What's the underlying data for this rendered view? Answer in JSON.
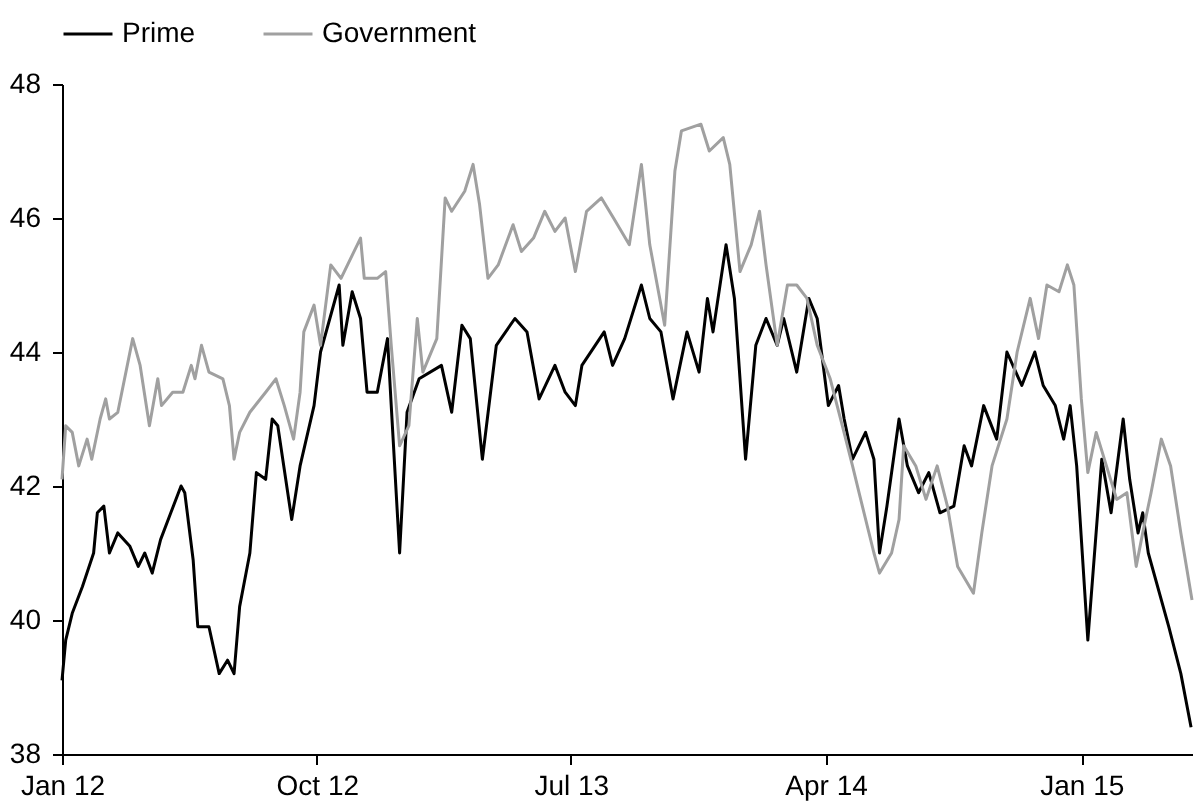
{
  "chart_data": {
    "type": "line",
    "legend": "top",
    "grid": false,
    "ylim": [
      38,
      48
    ],
    "yticks": [
      38,
      40,
      42,
      44,
      46,
      48
    ],
    "xlim": [
      "2012-01-01",
      "2015-04-30"
    ],
    "xticks": [
      {
        "value": "2012-01-01",
        "label": "Jan 12"
      },
      {
        "value": "2012-10-01",
        "label": "Oct 12"
      },
      {
        "value": "2013-07-01",
        "label": "Jul 13"
      },
      {
        "value": "2014-04-01",
        "label": "Apr 14"
      },
      {
        "value": "2015-01-01",
        "label": "Jan 15"
      }
    ],
    "series": [
      {
        "name": "Prime",
        "color": "#000000",
        "x": [
          "2012-01-01",
          "2012-01-05",
          "2012-01-12",
          "2012-01-23",
          "2012-02-04",
          "2012-02-08",
          "2012-02-15",
          "2012-02-21",
          "2012-03-01",
          "2012-03-14",
          "2012-03-23",
          "2012-03-30",
          "2012-04-07",
          "2012-04-16",
          "2012-04-27",
          "2012-05-08",
          "2012-05-12",
          "2012-05-21",
          "2012-05-26",
          "2012-06-07",
          "2012-06-18",
          "2012-06-27",
          "2012-07-04",
          "2012-07-10",
          "2012-07-21",
          "2012-07-28",
          "2012-08-07",
          "2012-08-14",
          "2012-08-20",
          "2012-09-04",
          "2012-09-13",
          "2012-09-28",
          "2012-10-05",
          "2012-10-25",
          "2012-10-29",
          "2012-11-08",
          "2012-11-17",
          "2012-11-24",
          "2012-12-05",
          "2012-12-16",
          "2012-12-20",
          "2012-12-29",
          "2013-01-06",
          "2013-01-19",
          "2013-02-12",
          "2013-02-23",
          "2013-03-06",
          "2013-03-15",
          "2013-03-28",
          "2013-04-12",
          "2013-05-02",
          "2013-05-15",
          "2013-05-28",
          "2013-06-14",
          "2013-06-25",
          "2013-07-06",
          "2013-07-13",
          "2013-08-06",
          "2013-08-15",
          "2013-08-28",
          "2013-09-15",
          "2013-09-24",
          "2013-10-06",
          "2013-10-19",
          "2013-11-03",
          "2013-11-16",
          "2013-11-25",
          "2013-12-01",
          "2013-12-15",
          "2013-12-24",
          "2014-01-05",
          "2014-01-16",
          "2014-01-27",
          "2014-02-08",
          "2014-02-15",
          "2014-03-01",
          "2014-03-14",
          "2014-03-23",
          "2014-04-04",
          "2014-04-15",
          "2014-04-21",
          "2014-04-30",
          "2014-05-14",
          "2014-05-23",
          "2014-05-29",
          "2014-06-06",
          "2014-06-19",
          "2014-06-28",
          "2014-07-10",
          "2014-07-21",
          "2014-08-02",
          "2014-08-17",
          "2014-08-28",
          "2014-09-05",
          "2014-09-18",
          "2014-10-02",
          "2014-10-13",
          "2014-10-29",
          "2014-11-12",
          "2014-11-21",
          "2014-12-04",
          "2014-12-13",
          "2014-12-20",
          "2014-12-27",
          "2015-01-08",
          "2015-01-23",
          "2015-02-02",
          "2015-02-15",
          "2015-02-22",
          "2015-03-03",
          "2015-03-08",
          "2015-03-14",
          "2015-04-05",
          "2015-04-18",
          "2015-04-29"
        ],
        "values": [
          39.1,
          39.7,
          40.1,
          40.5,
          41.0,
          41.6,
          41.7,
          41.0,
          41.3,
          41.1,
          40.8,
          41.0,
          40.7,
          41.2,
          41.6,
          42.0,
          41.9,
          40.9,
          39.9,
          39.9,
          39.2,
          39.4,
          39.2,
          40.2,
          41.0,
          42.2,
          42.1,
          43.0,
          42.9,
          41.5,
          42.3,
          43.2,
          44.0,
          45.0,
          44.1,
          44.9,
          44.5,
          43.4,
          43.4,
          44.2,
          43.2,
          41.0,
          43.1,
          43.6,
          43.8,
          43.1,
          44.4,
          44.2,
          42.4,
          44.1,
          44.5,
          44.3,
          43.3,
          43.8,
          43.4,
          43.2,
          43.8,
          44.3,
          43.8,
          44.2,
          45.0,
          44.5,
          44.3,
          43.3,
          44.3,
          43.7,
          44.8,
          44.3,
          45.6,
          44.8,
          42.4,
          44.1,
          44.5,
          44.1,
          44.5,
          43.7,
          44.8,
          44.5,
          43.2,
          43.5,
          43.0,
          42.4,
          42.8,
          42.4,
          41.0,
          41.7,
          43.0,
          42.3,
          41.9,
          42.2,
          41.6,
          41.7,
          42.6,
          42.3,
          43.2,
          42.7,
          44.0,
          43.5,
          44.0,
          43.5,
          43.2,
          42.7,
          43.2,
          42.3,
          39.7,
          42.4,
          41.6,
          43.0,
          42.1,
          41.3,
          41.6,
          41.0,
          39.9,
          39.2,
          38.4
        ]
      },
      {
        "name": "Government",
        "color": "#a0a0a0",
        "x": [
          "2012-01-01",
          "2012-01-05",
          "2012-01-12",
          "2012-01-19",
          "2012-01-28",
          "2012-02-02",
          "2012-02-11",
          "2012-02-17",
          "2012-02-21",
          "2012-03-01",
          "2012-03-17",
          "2012-03-25",
          "2012-04-04",
          "2012-04-13",
          "2012-04-17",
          "2012-04-29",
          "2012-05-10",
          "2012-05-19",
          "2012-05-23",
          "2012-05-30",
          "2012-06-07",
          "2012-06-22",
          "2012-06-29",
          "2012-07-04",
          "2012-07-10",
          "2012-07-21",
          "2012-08-07",
          "2012-08-18",
          "2012-08-27",
          "2012-09-06",
          "2012-09-13",
          "2012-09-17",
          "2012-09-28",
          "2012-10-05",
          "2012-10-16",
          "2012-10-27",
          "2012-11-17",
          "2012-11-21",
          "2012-12-05",
          "2012-12-14",
          "2012-12-20",
          "2012-12-29",
          "2013-01-08",
          "2013-01-17",
          "2013-01-23",
          "2013-02-07",
          "2013-02-16",
          "2013-02-23",
          "2013-03-09",
          "2013-03-18",
          "2013-03-25",
          "2013-04-03",
          "2013-04-14",
          "2013-04-30",
          "2013-05-09",
          "2013-05-22",
          "2013-06-03",
          "2013-06-14",
          "2013-06-25",
          "2013-07-06",
          "2013-07-18",
          "2013-08-03",
          "2013-08-16",
          "2013-09-02",
          "2013-09-15",
          "2013-09-24",
          "2013-10-10",
          "2013-10-21",
          "2013-10-28",
          "2013-11-18",
          "2013-11-27",
          "2013-12-12",
          "2013-12-19",
          "2013-12-30",
          "2014-01-11",
          "2014-01-20",
          "2014-01-27",
          "2014-02-08",
          "2014-02-19",
          "2014-03-01",
          "2014-03-12",
          "2014-03-23",
          "2014-04-06",
          "2014-04-19",
          "2014-04-30",
          "2014-05-07",
          "2014-05-23",
          "2014-05-29",
          "2014-06-11",
          "2014-06-19",
          "2014-06-24",
          "2014-07-07",
          "2014-07-18",
          "2014-07-30",
          "2014-08-10",
          "2014-08-21",
          "2014-09-07",
          "2014-09-16",
          "2014-09-27",
          "2014-10-13",
          "2014-10-24",
          "2014-11-07",
          "2014-11-16",
          "2014-11-25",
          "2014-12-08",
          "2014-12-17",
          "2014-12-24",
          "2015-01-01",
          "2015-01-08",
          "2015-01-17",
          "2015-01-28",
          "2015-02-08",
          "2015-02-19",
          "2015-03-01",
          "2015-03-08",
          "2015-03-17",
          "2015-03-28",
          "2015-04-07",
          "2015-04-18",
          "2015-04-30"
        ],
        "values": [
          42.1,
          42.9,
          42.8,
          42.3,
          42.7,
          42.4,
          43.0,
          43.3,
          43.0,
          43.1,
          44.2,
          43.8,
          42.9,
          43.6,
          43.2,
          43.4,
          43.4,
          43.8,
          43.6,
          44.1,
          43.7,
          43.6,
          43.2,
          42.4,
          42.8,
          43.1,
          43.4,
          43.6,
          43.2,
          42.7,
          43.4,
          44.3,
          44.7,
          44.1,
          45.3,
          45.1,
          45.7,
          45.1,
          45.1,
          45.2,
          44.1,
          42.6,
          42.9,
          44.5,
          43.7,
          44.2,
          46.3,
          46.1,
          46.4,
          46.8,
          46.2,
          45.1,
          45.3,
          45.9,
          45.5,
          45.7,
          46.1,
          45.8,
          46.0,
          45.2,
          46.1,
          46.3,
          46.0,
          45.6,
          46.8,
          45.6,
          44.4,
          46.7,
          47.3,
          47.4,
          47.0,
          47.2,
          46.8,
          45.2,
          45.6,
          46.1,
          45.3,
          44.1,
          45.0,
          45.0,
          44.8,
          44.1,
          43.6,
          42.9,
          42.3,
          41.9,
          41.0,
          40.7,
          41.0,
          41.5,
          42.6,
          42.3,
          41.8,
          42.3,
          41.7,
          40.8,
          40.4,
          41.3,
          42.3,
          43.0,
          44.0,
          44.8,
          44.2,
          45.0,
          44.9,
          45.3,
          45.0,
          43.3,
          42.2,
          42.8,
          42.3,
          41.8,
          41.9,
          40.8,
          41.3,
          41.9,
          42.7,
          42.3,
          41.3,
          40.3
        ]
      }
    ]
  }
}
